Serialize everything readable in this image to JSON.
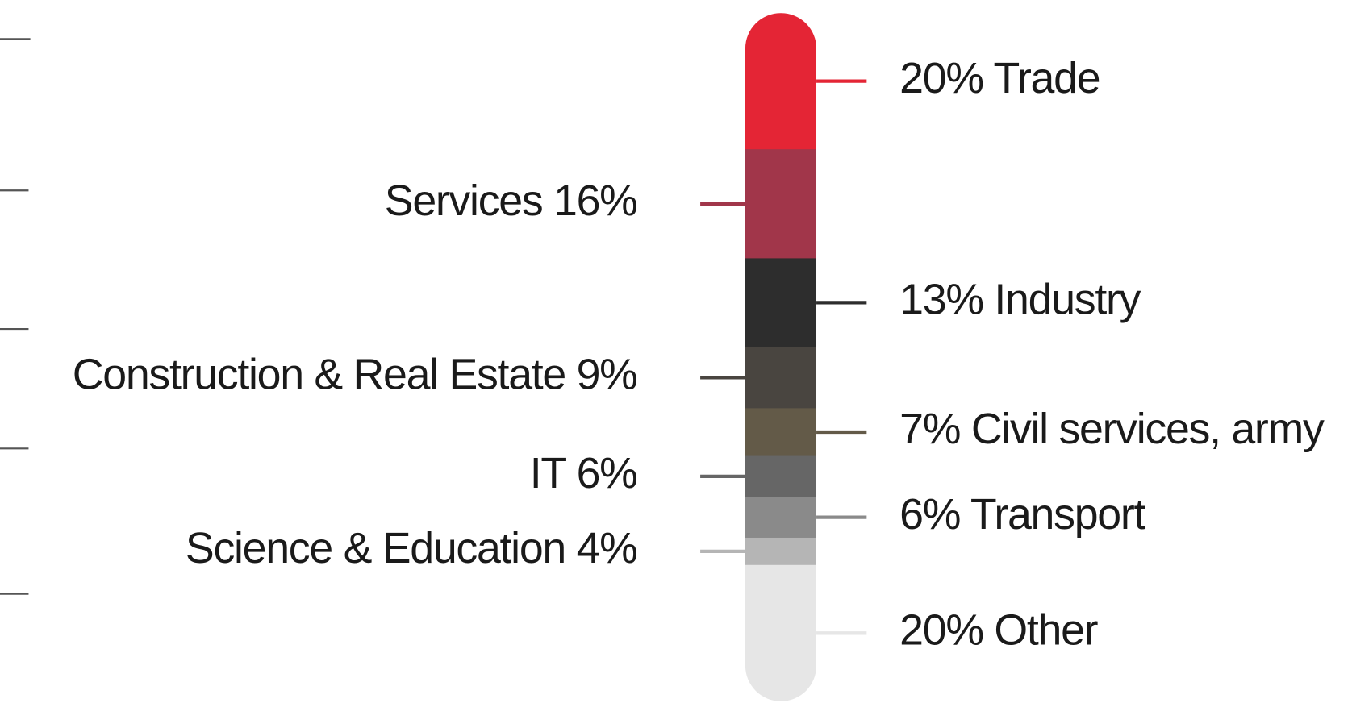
{
  "chart_data": {
    "type": "stacked-column",
    "categories": [
      "20% Trade",
      "Services 16%",
      "13% Industry",
      "Construction & Real Estate 9%",
      "7% Civil services, army",
      "IT 6%",
      "6% Transport",
      "Science & Education 4%",
      "20% Other"
    ],
    "values": [
      20,
      16,
      13,
      9,
      7,
      6,
      6,
      4,
      20
    ],
    "colors": [
      "#e42535",
      "#a1364a",
      "#2d2d2d",
      "#494540",
      "#635a48",
      "#666666",
      "#8a8a8a",
      "#b5b5b5",
      "#e6e6e6"
    ]
  }
}
